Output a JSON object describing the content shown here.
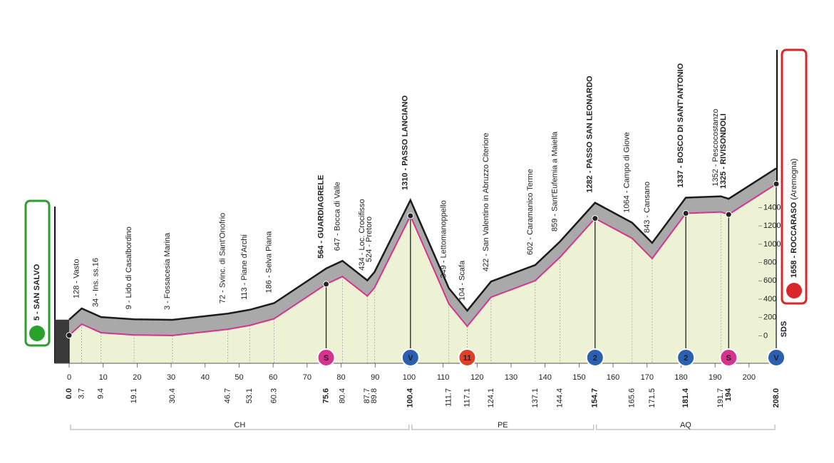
{
  "chart_data": {
    "type": "area",
    "start": "5 - SAN SALVO",
    "finish": "1658 - ROCCARASO",
    "finish_note": "(Aremogna)",
    "logo": "SDS",
    "x": [
      {
        "value": 0,
        "label": "0.0"
      },
      3.7,
      9.4,
      19.1,
      30.4,
      46.7,
      53.1,
      60.3,
      75.6,
      80.4,
      87.7,
      89.8,
      100.4,
      111.7,
      117.1,
      124.1,
      137.1,
      144.4,
      154.7,
      165.6,
      171.5,
      181.4,
      191.7,
      194.0,
      {
        "value": 208,
        "label": "208.0"
      }
    ],
    "values": [
      5,
      128,
      34,
      9,
      3,
      72,
      113,
      186,
      564,
      647,
      434,
      524,
      1310,
      349,
      104,
      422,
      602,
      859,
      1282,
      1064,
      843,
      1337,
      1352,
      1325,
      1658
    ],
    "labels": [
      null,
      "128 - Vasto",
      "34 - Ins. ss.16",
      "9 - Lido di Casalbordino",
      "3 - Fossacesia Marina",
      "72 - Svinc. di Sant'Onofrio",
      "113 - Piane d'Archi",
      "186 - Selva Piana",
      "564 - GUARDIAGRELE",
      "647 - Bocca di Valle",
      "434 - Loc. Crocifisso",
      "524 - Pretoro",
      "1310 - PASSO LANCIANO",
      "349 - Lettomanoppello",
      "104 - Scafa",
      "422 - San Valentino in Abruzzo Citeriore",
      "602 - Caramanico Terme",
      "859 - Sant'Eufemia a Maiella",
      "1282 - PASSO SAN LEONARDO",
      "1064 - Campo di Giove",
      "843 - Cansano",
      "1337 - BOSCO DI SANT'ANTONIO",
      "1352 - Pescocostanzo",
      "1325 - RIVISONDOLI",
      null
    ],
    "bold": [
      true,
      false,
      false,
      false,
      false,
      false,
      false,
      false,
      true,
      false,
      false,
      false,
      true,
      false,
      false,
      false,
      false,
      false,
      true,
      false,
      false,
      true,
      false,
      true,
      true
    ],
    "xlim": [
      0,
      208
    ],
    "xticks": [
      0,
      10,
      20,
      30,
      40,
      50,
      60,
      70,
      80,
      90,
      100,
      110,
      120,
      130,
      140,
      150,
      160,
      170,
      180,
      190,
      200
    ],
    "ylim": [
      -300,
      3200
    ],
    "yticks": [
      0,
      200,
      400,
      600,
      800,
      1000,
      1200,
      1400
    ],
    "line_color": "#d6338f",
    "fill_color": "#eef2d4",
    "relief_color": "#a9a9a9",
    "markers": [
      {
        "km": 75.6,
        "symbol": "S",
        "color": "#d6338f"
      },
      {
        "km": 100.4,
        "symbol": "V",
        "color": "#2b5fb0"
      },
      {
        "km": 117.1,
        "symbol": "11",
        "color": "#e0402a"
      },
      {
        "km": 154.7,
        "symbol": "2",
        "color": "#2b5fb0"
      },
      {
        "km": 181.4,
        "symbol": "2",
        "color": "#2b5fb0"
      },
      {
        "km": 194.0,
        "symbol": "S",
        "color": "#d6338f"
      },
      {
        "km": 208,
        "symbol": "V",
        "color": "#2b5fb0"
      }
    ],
    "regions": [
      {
        "name": "CH",
        "from": 0,
        "to": 100.4
      },
      {
        "name": "PE",
        "from": 100.4,
        "to": 154.7
      },
      {
        "name": "AQ",
        "from": 154.7,
        "to": 208
      }
    ]
  }
}
